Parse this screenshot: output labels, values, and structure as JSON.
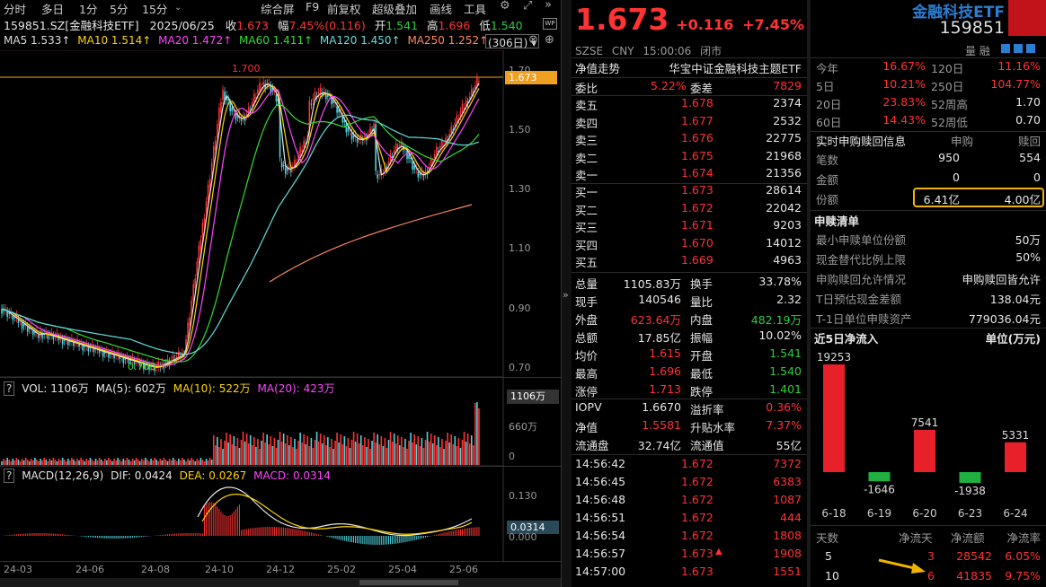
{
  "toolbar": {
    "items": [
      "分时",
      "多日",
      "1分",
      "5分",
      "15分",
      "综合屏",
      "F9",
      "前复权",
      "超级叠加",
      "画线",
      "工具"
    ]
  },
  "header": {
    "code_name": "159851.SZ[金融科技ETF]",
    "date": "2025/06/25",
    "close_label": "收",
    "close": "1.673",
    "chg_label": "幅",
    "chg": "7.45%(0.116)",
    "open_label": "开",
    "open": "1.541",
    "high_label": "高",
    "high": "1.696",
    "low_label": "低",
    "low": "1.540"
  },
  "ma_line": {
    "ma5": "MA5 1.533↑",
    "ma10": "MA10 1.514↑",
    "ma20": "MA20 1.472↑",
    "ma60": "MA60 1.411↑",
    "ma120": "MA120 1.450↑",
    "ma250": "MA250 1.252↑",
    "period": "(306日)"
  },
  "price_axis": [
    "1.70",
    "1.50",
    "1.30",
    "1.10",
    "0.90",
    "0.70"
  ],
  "price_tag": "1.673",
  "hi_label": "1.700",
  "lo_label": "0.700",
  "vol_line": {
    "q": "?",
    "vol": "VOL: 1106万",
    "ma5": "MA(5): 602万",
    "ma10": "MA(10): 522万",
    "ma20": "MA(20): 423万"
  },
  "vol_axis": [
    "1106万",
    "660万",
    "0"
  ],
  "macd_line": {
    "q": "?",
    "title": "MACD(12,26,9)",
    "dif": "DIF: 0.0424",
    "dea": "DEA: 0.0267",
    "macd": "MACD: 0.0314"
  },
  "macd_axis": [
    "0.130",
    "0.000"
  ],
  "macd_tag": "0.0314",
  "date_axis": [
    "24-03",
    "24-06",
    "24-08",
    "24-10",
    "24-12",
    "25-02",
    "25-04",
    "25-06"
  ],
  "quote": {
    "price": "1.673",
    "change": "+0.116",
    "pct": "+7.45%",
    "exch": "SZSE",
    "cur": "CNY",
    "time": "15:00:06",
    "status": "闭市"
  },
  "title_box": {
    "name": "金融科技ETF",
    "code": "159851",
    "sub": "量 融"
  },
  "fund": {
    "label": "净值走势",
    "name": "华宝中证金融科技主题ETF"
  },
  "weibi": {
    "l1": "委比",
    "v1": "5.22%",
    "l2": "委差",
    "v2": "7829"
  },
  "asks": [
    {
      "l": "卖五",
      "p": "1.678",
      "v": "2374"
    },
    {
      "l": "卖四",
      "p": "1.677",
      "v": "2532"
    },
    {
      "l": "卖三",
      "p": "1.676",
      "v": "22775"
    },
    {
      "l": "卖二",
      "p": "1.675",
      "v": "21968"
    },
    {
      "l": "卖一",
      "p": "1.674",
      "v": "21356"
    }
  ],
  "bids": [
    {
      "l": "买一",
      "p": "1.673",
      "v": "28614"
    },
    {
      "l": "买二",
      "p": "1.672",
      "v": "22042"
    },
    {
      "l": "买三",
      "p": "1.671",
      "v": "9203"
    },
    {
      "l": "买四",
      "p": "1.670",
      "v": "14012"
    },
    {
      "l": "买五",
      "p": "1.669",
      "v": "4963"
    }
  ],
  "stats": [
    {
      "l1": "总量",
      "v1": "1105.83万",
      "l2": "换手",
      "v2": "33.78%"
    },
    {
      "l1": "现手",
      "v1": "140546",
      "l2": "量比",
      "v2": "2.32"
    },
    {
      "l1": "外盘",
      "v1": "623.64万",
      "l2": "内盘",
      "v2": "482.19万"
    },
    {
      "l1": "总额",
      "v1": "17.85亿",
      "l2": "振幅",
      "v2": "10.02%"
    },
    {
      "l1": "均价",
      "v1": "1.615",
      "l2": "开盘",
      "v2": "1.541"
    },
    {
      "l1": "最高",
      "v1": "1.696",
      "l2": "最低",
      "v2": "1.540"
    },
    {
      "l1": "涨停",
      "v1": "1.713",
      "l2": "跌停",
      "v2": "1.401"
    }
  ],
  "iopv": [
    {
      "l1": "IOPV",
      "v1": "1.6670",
      "l2": "溢折率",
      "v2": "0.36%"
    },
    {
      "l1": "净值",
      "v1": "1.5581",
      "l2": "升贴水率",
      "v2": "7.37%"
    },
    {
      "l1": "流通盘",
      "v1": "32.74亿",
      "l2": "流通值",
      "v2": "55亿"
    }
  ],
  "ticks": [
    {
      "t": "14:56:42",
      "p": "1.672",
      "v": "7372"
    },
    {
      "t": "14:56:45",
      "p": "1.672",
      "v": "6383"
    },
    {
      "t": "14:56:48",
      "p": "1.672",
      "v": "1087"
    },
    {
      "t": "14:56:51",
      "p": "1.672",
      "v": "444"
    },
    {
      "t": "14:56:54",
      "p": "1.672",
      "v": "1808"
    },
    {
      "t": "14:56:57",
      "p": "1.673",
      "v": "1908"
    },
    {
      "t": "14:57:00",
      "p": "1.673",
      "v": "1551"
    }
  ],
  "perf": [
    {
      "l1": "今年",
      "v1": "16.67%",
      "l2": "120日",
      "v2": "11.16%"
    },
    {
      "l1": "5日",
      "v1": "10.21%",
      "l2": "250日",
      "v2": "104.77%"
    },
    {
      "l1": "20日",
      "v1": "23.83%",
      "l2": "52周高",
      "v2": "1.70"
    },
    {
      "l1": "60日",
      "v1": "14.43%",
      "l2": "52周低",
      "v2": "0.70"
    }
  ],
  "redeem": {
    "title": "实时申购赎回信息",
    "h1": "申购",
    "h2": "赎回",
    "rows": [
      {
        "l": "笔数",
        "a": "950",
        "b": "554"
      },
      {
        "l": "金额",
        "a": "0",
        "b": "0"
      },
      {
        "l": "份额",
        "a": "6.41亿",
        "b": "4.00亿"
      }
    ]
  },
  "list": {
    "title": "申赎清单",
    "rows": [
      {
        "l": "最小申赎单位份额",
        "v": "50万"
      },
      {
        "l": "现金替代比例上限",
        "v": "50%"
      },
      {
        "l": "申购赎回允许情况",
        "v": "申购赎回皆允许"
      },
      {
        "l": "T日预估现金差额",
        "v": "138.04元"
      },
      {
        "l": "T-1日单位申赎资产",
        "v": "779036.04元"
      }
    ]
  },
  "flow": {
    "title": "近5日净流入",
    "unit": "单位(万元)"
  },
  "chart_data": {
    "type": "bar",
    "categories": [
      "6-18",
      "6-19",
      "6-20",
      "6-23",
      "6-24"
    ],
    "values": [
      19253,
      -1646,
      7541,
      -1938,
      5331
    ],
    "title": "近5日净流入",
    "ylabel": "单位(万元)"
  },
  "flow_table": {
    "headers": [
      "天数",
      "净流天",
      "净流额",
      "净流率"
    ],
    "rows": [
      {
        "d": "5",
        "n": "3",
        "a": "28542",
        "r": "6.05%"
      },
      {
        "d": "10",
        "n": "6",
        "a": "41835",
        "r": "9.75%"
      }
    ]
  }
}
